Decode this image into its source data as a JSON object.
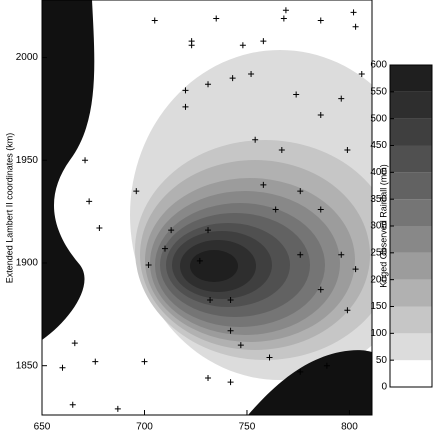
{
  "chart_data": {
    "type": "contour",
    "y_label": "Extended Lambert II coordinates (km)",
    "xlim": [
      650,
      811
    ],
    "ylim": [
      1826,
      2028
    ],
    "xticks": [
      650,
      700,
      750,
      800
    ],
    "yticks": [
      1850,
      1900,
      1950,
      2000
    ],
    "colorbar": {
      "label": "Kriged Observed Rainfall (mm)",
      "ticks": [
        0,
        50,
        100,
        150,
        200,
        250,
        300,
        350,
        400,
        450,
        500,
        550,
        600
      ],
      "colors": [
        "#ffffff",
        "#dcdcdc",
        "#c6c6c6",
        "#b1b1b1",
        "#9c9c9c",
        "#888888",
        "#757575",
        "#626262",
        "#505050",
        "#3f3f3f",
        "#2e2e2e",
        "#1f1f1f"
      ]
    },
    "stations": {
      "x": [
        705,
        723,
        723,
        735,
        748,
        758,
        768,
        769,
        786,
        802,
        803,
        743,
        752,
        720,
        720,
        731,
        696,
        671,
        673,
        678,
        702,
        710,
        727,
        742,
        732,
        742,
        747,
        761,
        731,
        742,
        789,
        776,
        666,
        676,
        660,
        665,
        687,
        700,
        774,
        786,
        796,
        806,
        799,
        754,
        767,
        776,
        764,
        786,
        796,
        776,
        803,
        758,
        731,
        786,
        799,
        713
      ],
      "y": [
        2018,
        2006,
        2008,
        2019,
        2006,
        2008,
        2019,
        2023,
        2018,
        2022,
        2015,
        1990,
        1992,
        1984,
        1976,
        1987,
        1935,
        1950,
        1930,
        1917,
        1899,
        1907,
        1901,
        1882,
        1882,
        1867,
        1860,
        1854,
        1844,
        1842,
        1850,
        1847,
        1861,
        1852,
        1849,
        1831,
        1829,
        1852,
        1982,
        1972,
        1980,
        1992,
        1955,
        1960,
        1955,
        1935,
        1926,
        1926,
        1904,
        1904,
        1897,
        1938,
        1916,
        1887,
        1877,
        1916
      ]
    }
  }
}
